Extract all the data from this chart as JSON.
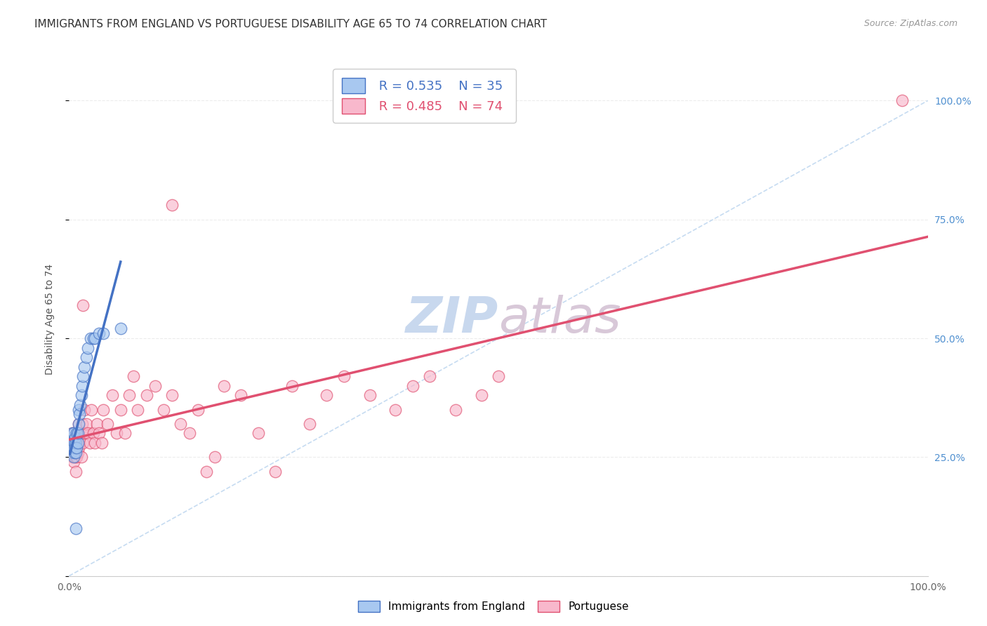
{
  "title": "IMMIGRANTS FROM ENGLAND VS PORTUGUESE DISABILITY AGE 65 TO 74 CORRELATION CHART",
  "source": "Source: ZipAtlas.com",
  "ylabel": "Disability Age 65 to 74",
  "ytick_labels": [
    "",
    "25.0%",
    "50.0%",
    "75.0%",
    "100.0%"
  ],
  "ytick_positions": [
    0.0,
    0.25,
    0.5,
    0.75,
    1.0
  ],
  "xlim": [
    0.0,
    1.0
  ],
  "ylim": [
    0.0,
    1.08
  ],
  "england_R": "0.535",
  "england_N": "35",
  "portuguese_R": "0.485",
  "portuguese_N": "74",
  "england_color": "#a8c8f0",
  "portuguese_color": "#f8b8cc",
  "england_line_color": "#4472c4",
  "portuguese_line_color": "#e05070",
  "diagonal_color": "#c0d8f0",
  "watermark_zip": "ZIP",
  "watermark_atlas": "atlas",
  "legend_england": "Immigrants from England",
  "legend_portuguese": "Portuguese",
  "england_x": [
    0.002,
    0.003,
    0.003,
    0.004,
    0.004,
    0.005,
    0.005,
    0.005,
    0.006,
    0.006,
    0.007,
    0.007,
    0.008,
    0.008,
    0.009,
    0.009,
    0.01,
    0.01,
    0.011,
    0.011,
    0.012,
    0.013,
    0.014,
    0.015,
    0.016,
    0.018,
    0.02,
    0.022,
    0.025,
    0.028,
    0.03,
    0.035,
    0.04,
    0.06,
    0.008
  ],
  "england_y": [
    0.26,
    0.27,
    0.29,
    0.28,
    0.3,
    0.25,
    0.27,
    0.3,
    0.26,
    0.28,
    0.27,
    0.29,
    0.26,
    0.28,
    0.27,
    0.3,
    0.28,
    0.3,
    0.32,
    0.35,
    0.34,
    0.36,
    0.38,
    0.4,
    0.42,
    0.44,
    0.46,
    0.48,
    0.5,
    0.5,
    0.5,
    0.51,
    0.51,
    0.52,
    0.1
  ],
  "portuguese_x": [
    0.001,
    0.002,
    0.002,
    0.003,
    0.003,
    0.004,
    0.004,
    0.005,
    0.005,
    0.006,
    0.006,
    0.007,
    0.007,
    0.008,
    0.008,
    0.009,
    0.009,
    0.01,
    0.01,
    0.011,
    0.011,
    0.012,
    0.013,
    0.014,
    0.015,
    0.016,
    0.017,
    0.018,
    0.019,
    0.02,
    0.022,
    0.024,
    0.026,
    0.028,
    0.03,
    0.032,
    0.035,
    0.038,
    0.04,
    0.045,
    0.05,
    0.055,
    0.06,
    0.065,
    0.07,
    0.075,
    0.08,
    0.09,
    0.1,
    0.11,
    0.12,
    0.13,
    0.14,
    0.15,
    0.16,
    0.17,
    0.18,
    0.2,
    0.22,
    0.24,
    0.26,
    0.28,
    0.3,
    0.32,
    0.35,
    0.38,
    0.4,
    0.42,
    0.45,
    0.48,
    0.5,
    0.12,
    0.97,
    0.016
  ],
  "portuguese_y": [
    0.28,
    0.26,
    0.29,
    0.27,
    0.28,
    0.25,
    0.3,
    0.24,
    0.27,
    0.26,
    0.28,
    0.25,
    0.29,
    0.27,
    0.22,
    0.28,
    0.25,
    0.26,
    0.3,
    0.27,
    0.32,
    0.28,
    0.3,
    0.25,
    0.32,
    0.28,
    0.3,
    0.35,
    0.3,
    0.32,
    0.3,
    0.28,
    0.35,
    0.3,
    0.28,
    0.32,
    0.3,
    0.28,
    0.35,
    0.32,
    0.38,
    0.3,
    0.35,
    0.3,
    0.38,
    0.42,
    0.35,
    0.38,
    0.4,
    0.35,
    0.38,
    0.32,
    0.3,
    0.35,
    0.22,
    0.25,
    0.4,
    0.38,
    0.3,
    0.22,
    0.4,
    0.32,
    0.38,
    0.42,
    0.38,
    0.35,
    0.4,
    0.42,
    0.35,
    0.38,
    0.42,
    0.78,
    1.0,
    0.57
  ],
  "title_fontsize": 11,
  "axis_label_fontsize": 10,
  "tick_fontsize": 10,
  "right_tick_color": "#5090d0",
  "background_color": "#ffffff",
  "grid_color": "#e8e8e8"
}
